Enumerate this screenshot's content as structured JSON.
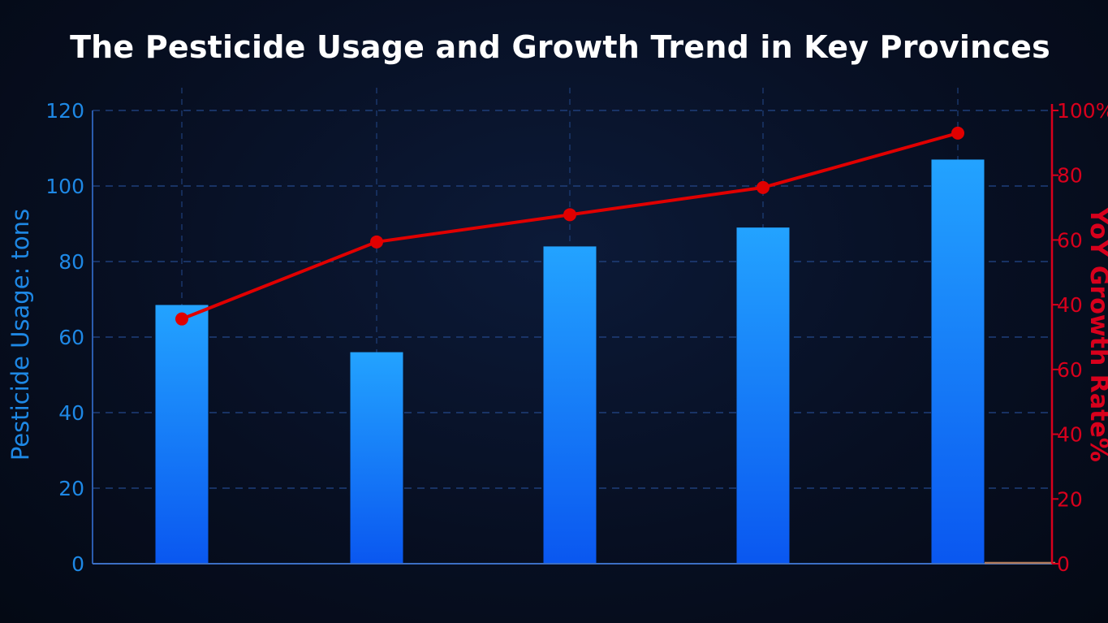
{
  "chart_data": {
    "type": "bar",
    "title": "The Pesticide Usage and Growth Trend in Key Provinces",
    "ylabel": "Pesticide Usage: tons",
    "y2label": "YoY Growth Rate%",
    "categories": [
      "",
      "",
      "",
      "",
      ""
    ],
    "ylim": [
      0,
      120
    ],
    "yticks": [
      0,
      20,
      40,
      60,
      80,
      100,
      120
    ],
    "y2lim": [
      0,
      100
    ],
    "y2ticks": [
      "0",
      "20",
      "40",
      "60",
      "40",
      "60",
      "80",
      "100%"
    ],
    "grid": true,
    "series": [
      {
        "type": "bar",
        "axis": "left",
        "color": "#1e8fff",
        "values": [
          68.5,
          56,
          84,
          89,
          107
        ]
      },
      {
        "type": "line",
        "axis": "right",
        "color": "#e00000",
        "values": [
          54,
          71,
          77,
          83,
          95
        ]
      }
    ]
  },
  "colors": {
    "left_axis": "#1e88e5",
    "right_axis": "#d8001c",
    "grid": "#1f3f7a"
  }
}
